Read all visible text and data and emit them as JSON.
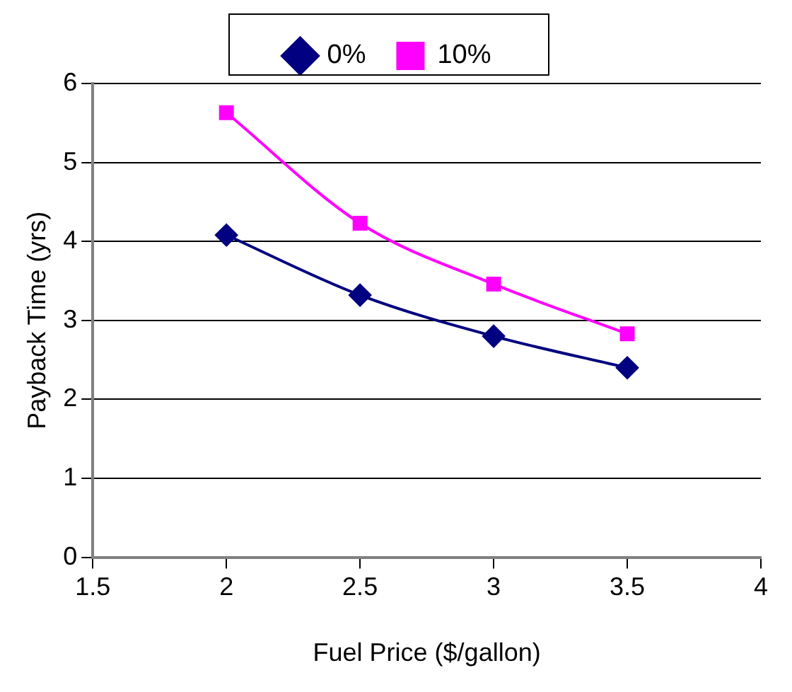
{
  "chart_data": {
    "type": "line",
    "xlabel": "Fuel Price ($/gallon)",
    "ylabel": "Payback Time (yrs)",
    "x": [
      2,
      2.5,
      3,
      3.5
    ],
    "series": [
      {
        "name": "0%",
        "color": "#000080",
        "values": [
          4.08,
          3.32,
          2.8,
          2.4
        ],
        "marker": "diamond"
      },
      {
        "name": "10%",
        "color": "#ff00ff",
        "values": [
          5.63,
          4.23,
          3.46,
          2.83
        ],
        "marker": "square"
      }
    ],
    "xlim": [
      1.5,
      4
    ],
    "xticks": [
      1.5,
      2,
      2.5,
      3,
      3.5,
      4
    ],
    "ylim": [
      0,
      6
    ],
    "yticks": [
      0,
      1,
      2,
      3,
      4,
      5,
      6
    ],
    "grid": "y",
    "legend": "top"
  }
}
